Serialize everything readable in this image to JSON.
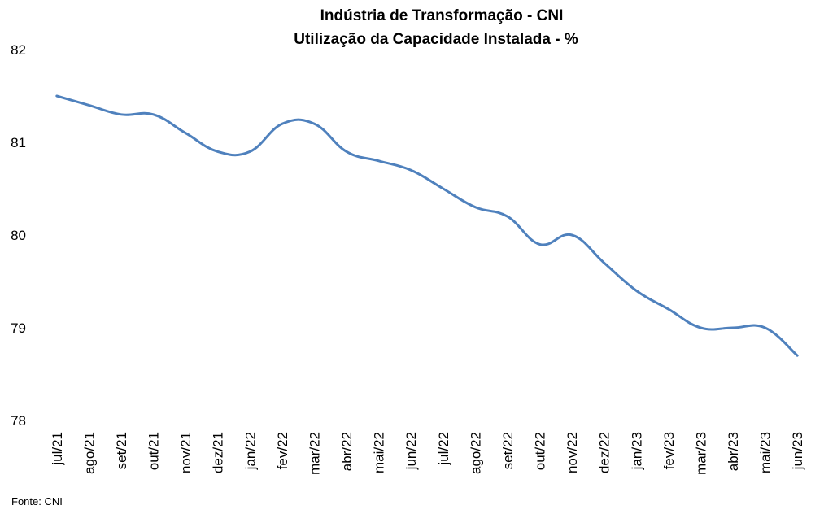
{
  "chart_data": {
    "type": "line",
    "title": "Indústria de Transformação -  CNI",
    "subtitle": "Utilização da Capacidade Instalada - %",
    "xlabel": "",
    "ylabel": "",
    "categories": [
      "jul/21",
      "ago/21",
      "set/21",
      "out/21",
      "nov/21",
      "dez/21",
      "jan/22",
      "fev/22",
      "mar/22",
      "abr/22",
      "mai/22",
      "jun/22",
      "jul/22",
      "ago/22",
      "set/22",
      "out/22",
      "nov/22",
      "dez/22",
      "jan/23",
      "fev/23",
      "mar/23",
      "abr/23",
      "mai/23",
      "jun/23"
    ],
    "series": [
      {
        "values": [
          81.5,
          81.4,
          81.3,
          81.3,
          81.1,
          80.9,
          80.9,
          81.2,
          81.2,
          80.9,
          80.8,
          80.7,
          80.5,
          80.3,
          80.2,
          79.9,
          80.0,
          79.7,
          79.4,
          79.2,
          79.0,
          79.0,
          79.0,
          78.7
        ],
        "color": "#4f81bd"
      }
    ],
    "ylim": [
      78,
      82
    ],
    "yticks": [
      78,
      79,
      80,
      81,
      82
    ],
    "grid": false,
    "legend": "none",
    "source": "Fonte: CNI"
  }
}
